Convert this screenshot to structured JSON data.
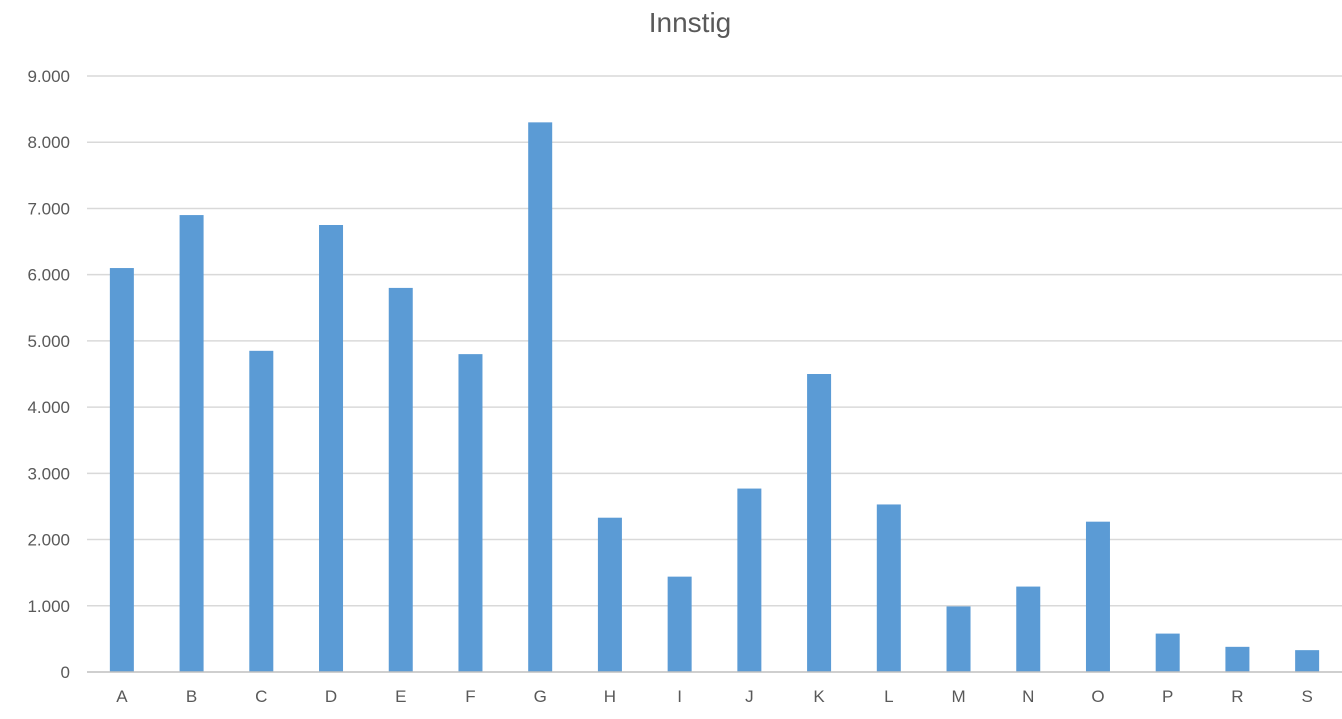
{
  "chart_data": {
    "type": "bar",
    "title": "Innstig",
    "xlabel": "",
    "ylabel": "",
    "categories": [
      "A",
      "B",
      "C",
      "D",
      "E",
      "F",
      "G",
      "H",
      "I",
      "J",
      "K",
      "L",
      "M",
      "N",
      "O",
      "P",
      "R",
      "S"
    ],
    "values": [
      6100,
      6900,
      4850,
      6750,
      5800,
      4800,
      8300,
      2330,
      1440,
      2770,
      4500,
      2530,
      990,
      1290,
      2270,
      580,
      380,
      330
    ],
    "ylim": [
      0,
      9000
    ],
    "y_ticks": [
      0,
      1000,
      2000,
      3000,
      4000,
      5000,
      6000,
      7000,
      8000,
      9000
    ],
    "y_tick_labels": [
      "0",
      "1.000",
      "2.000",
      "3.000",
      "4.000",
      "5.000",
      "6.000",
      "7.000",
      "8.000",
      "9.000"
    ],
    "grid": true,
    "legend": "none",
    "bar_color": "#5b9bd5"
  }
}
